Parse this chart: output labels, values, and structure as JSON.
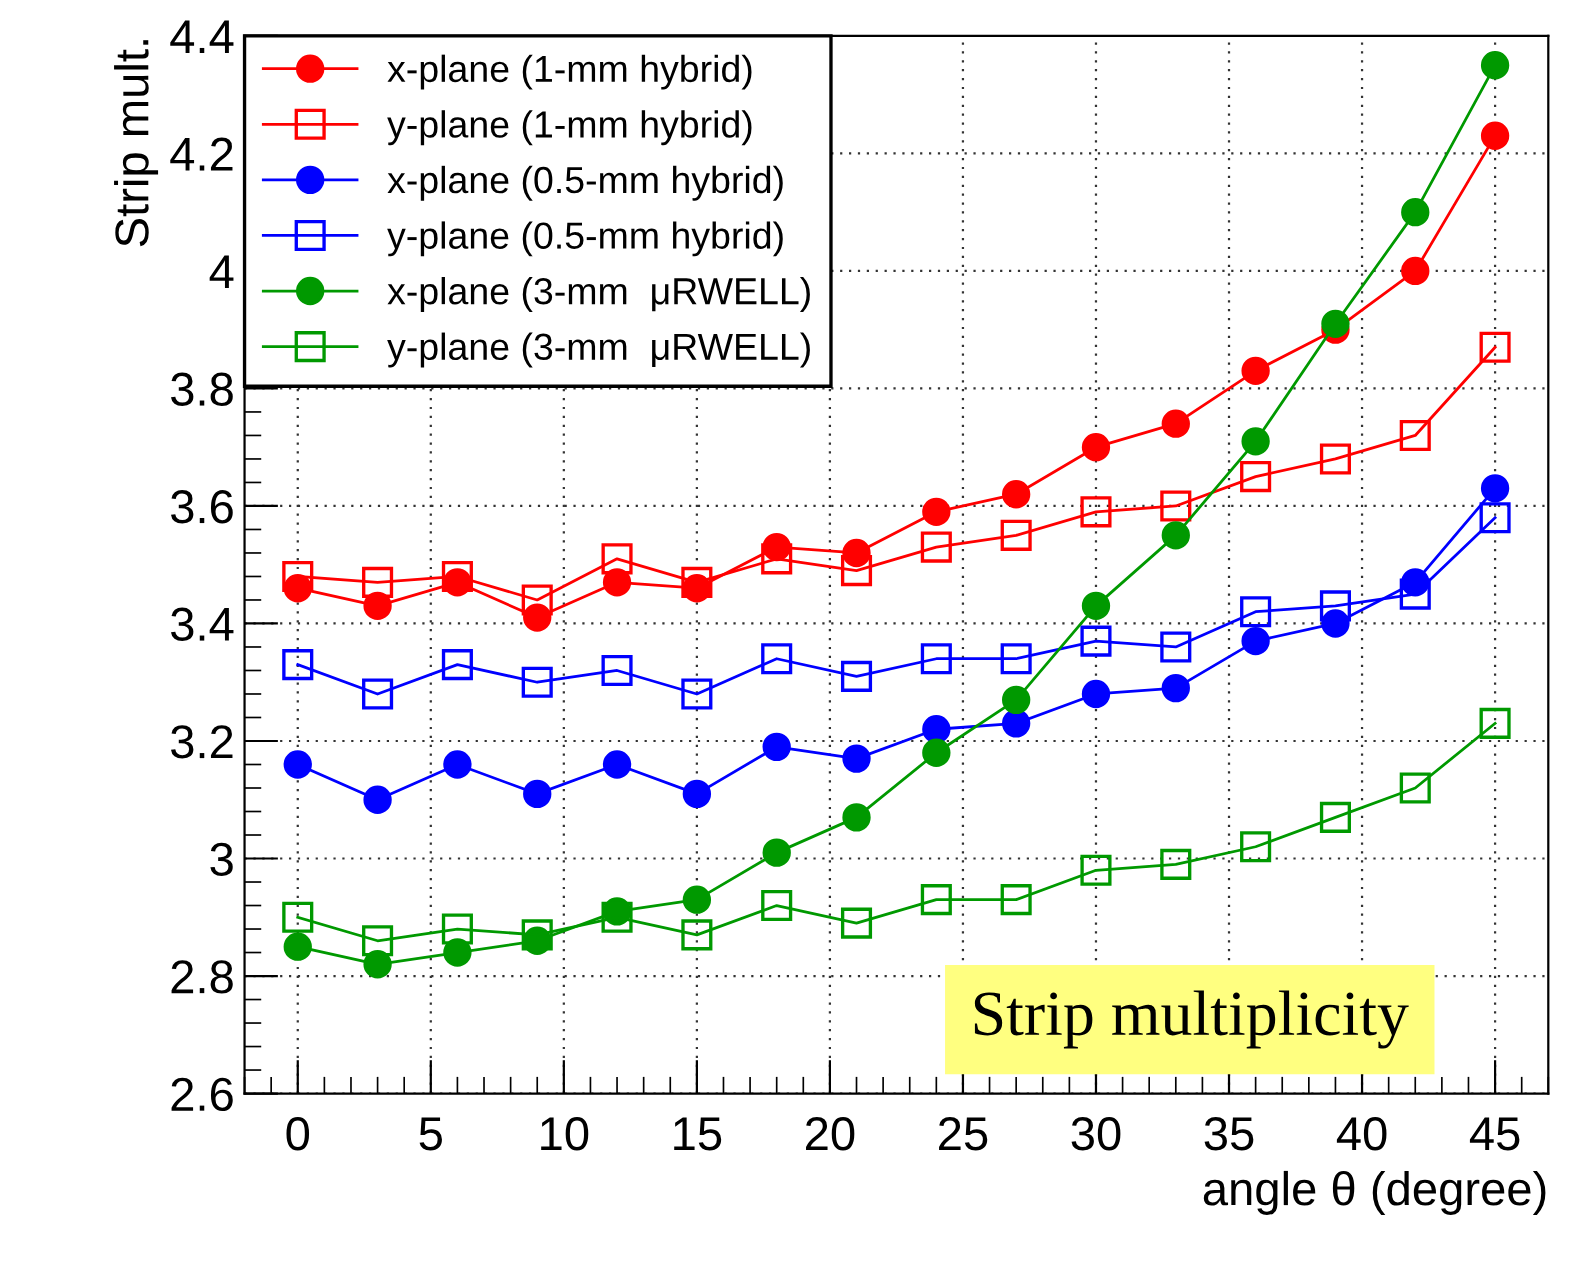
{
  "chart_data": {
    "type": "line",
    "xlabel": "angle θ (degree)",
    "ylabel": "Strip mult.",
    "x": [
      0,
      3,
      6,
      9,
      12,
      15,
      18,
      21,
      24,
      27,
      30,
      33,
      36,
      39,
      42,
      45
    ],
    "series": [
      {
        "name": "x-plane (1-mm hybrid)",
        "color": "#ff0000",
        "marker": "circle",
        "values": [
          3.46,
          3.43,
          3.47,
          3.41,
          3.47,
          3.46,
          3.53,
          3.52,
          3.59,
          3.62,
          3.7,
          3.74,
          3.83,
          3.9,
          4.0,
          4.23
        ]
      },
      {
        "name": "y-plane (1-mm hybrid)",
        "color": "#ff0000",
        "marker": "square",
        "values": [
          3.48,
          3.47,
          3.48,
          3.44,
          3.51,
          3.47,
          3.51,
          3.49,
          3.53,
          3.55,
          3.59,
          3.6,
          3.65,
          3.68,
          3.72,
          3.87
        ]
      },
      {
        "name": "x-plane (0.5-mm hybrid)",
        "color": "#0000ff",
        "marker": "circle",
        "values": [
          3.16,
          3.1,
          3.16,
          3.11,
          3.16,
          3.11,
          3.19,
          3.17,
          3.22,
          3.23,
          3.28,
          3.29,
          3.37,
          3.4,
          3.47,
          3.63
        ]
      },
      {
        "name": "y-plane (0.5-mm hybrid)",
        "color": "#0000ff",
        "marker": "square",
        "values": [
          3.33,
          3.28,
          3.33,
          3.3,
          3.32,
          3.28,
          3.34,
          3.31,
          3.34,
          3.34,
          3.37,
          3.36,
          3.42,
          3.43,
          3.45,
          3.58
        ]
      },
      {
        "name": "x-plane (3-mm  μRWELL)",
        "color": "#009900",
        "marker": "circle",
        "values": [
          2.85,
          2.82,
          2.84,
          2.86,
          2.91,
          2.93,
          3.01,
          3.07,
          3.18,
          3.27,
          3.43,
          3.55,
          3.71,
          3.91,
          4.1,
          4.35
        ]
      },
      {
        "name": "y-plane (3-mm  μRWELL)",
        "color": "#009900",
        "marker": "square",
        "values": [
          2.9,
          2.86,
          2.88,
          2.87,
          2.9,
          2.87,
          2.92,
          2.89,
          2.93,
          2.93,
          2.98,
          2.99,
          3.02,
          3.07,
          3.12,
          3.23
        ]
      }
    ],
    "xlim": [
      -2,
      47
    ],
    "xticks": [
      0,
      5,
      10,
      15,
      20,
      25,
      30,
      35,
      40,
      45
    ],
    "ylim": [
      2.6,
      4.4
    ],
    "yticks": [
      {
        "value": 2.6,
        "label": "2.6"
      },
      {
        "value": 2.8,
        "label": "2.8"
      },
      {
        "value": 3.0,
        "label": "3"
      },
      {
        "value": 3.2,
        "label": "3.2"
      },
      {
        "value": 3.4,
        "label": "3.4"
      },
      {
        "value": 3.6,
        "label": "3.6"
      },
      {
        "value": 3.8,
        "label": "3.8"
      },
      {
        "value": 4.0,
        "label": "4"
      },
      {
        "value": 4.2,
        "label": "4.2"
      },
      {
        "value": 4.4,
        "label": "4.4"
      }
    ],
    "grid": true,
    "legend": "top left",
    "line_style": "solid",
    "annotations": [
      "Strip multiplicity"
    ]
  }
}
